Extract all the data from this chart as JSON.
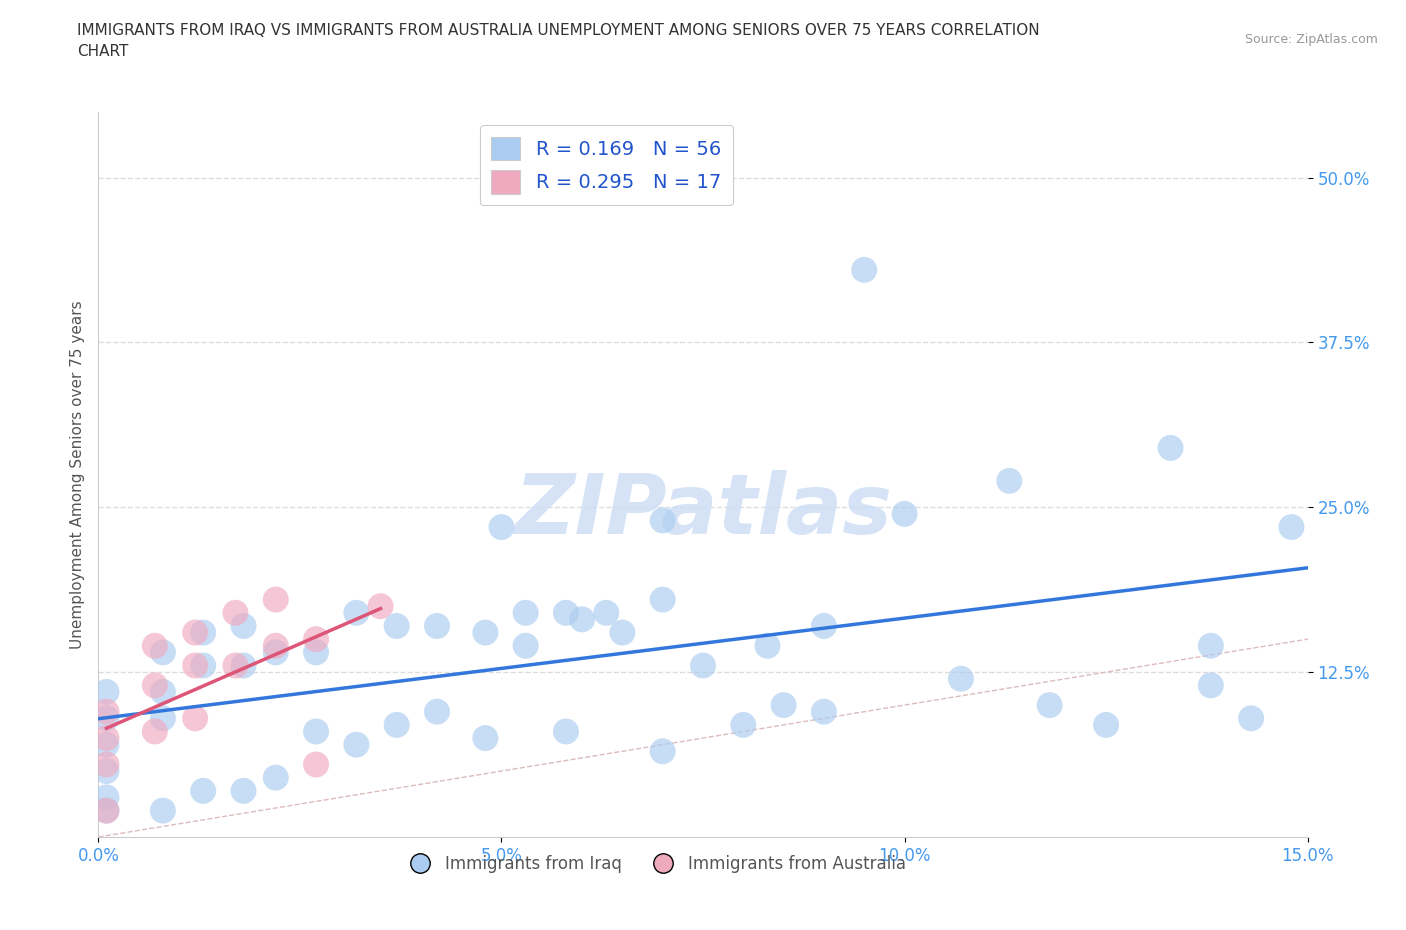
{
  "title": "IMMIGRANTS FROM IRAQ VS IMMIGRANTS FROM AUSTRALIA UNEMPLOYMENT AMONG SENIORS OVER 75 YEARS CORRELATION\nCHART",
  "source": "Source: ZipAtlas.com",
  "ylabel": "Unemployment Among Seniors over 75 years",
  "xlim": [
    0.0,
    0.15
  ],
  "ylim": [
    0.0,
    0.55
  ],
  "xticks": [
    0.0,
    0.05,
    0.1,
    0.15
  ],
  "xticklabels": [
    "0.0%",
    "5.0%",
    "10.0%",
    "15.0%"
  ],
  "yticks": [
    0.125,
    0.25,
    0.375,
    0.5
  ],
  "yticklabels": [
    "12.5%",
    "25.0%",
    "37.5%",
    "50.0%"
  ],
  "iraq_R": 0.169,
  "iraq_N": 56,
  "australia_R": 0.295,
  "australia_N": 17,
  "iraq_color": "#aaccf0",
  "australia_color": "#f0aac0",
  "iraq_line_color": "#3377dd",
  "australia_line_color": "#dd5577",
  "diagonal_color": "#ddbbbb",
  "watermark_color": "#ccddf5",
  "iraq_x": [
    0.001,
    0.001,
    0.001,
    0.001,
    0.001,
    0.001,
    0.008,
    0.008,
    0.008,
    0.008,
    0.013,
    0.013,
    0.013,
    0.018,
    0.018,
    0.018,
    0.022,
    0.022,
    0.027,
    0.027,
    0.032,
    0.032,
    0.037,
    0.037,
    0.042,
    0.042,
    0.048,
    0.048,
    0.053,
    0.053,
    0.058,
    0.058,
    0.063,
    0.07,
    0.07,
    0.075,
    0.083,
    0.09,
    0.09,
    0.095,
    0.1,
    0.107,
    0.113,
    0.118,
    0.125,
    0.133,
    0.138,
    0.138,
    0.143,
    0.148,
    0.05,
    0.06,
    0.065,
    0.07,
    0.08,
    0.085
  ],
  "iraq_y": [
    0.05,
    0.07,
    0.09,
    0.11,
    0.03,
    0.02,
    0.09,
    0.11,
    0.14,
    0.02,
    0.13,
    0.155,
    0.035,
    0.16,
    0.13,
    0.035,
    0.14,
    0.045,
    0.14,
    0.08,
    0.17,
    0.07,
    0.16,
    0.085,
    0.16,
    0.095,
    0.155,
    0.075,
    0.17,
    0.145,
    0.17,
    0.08,
    0.17,
    0.18,
    0.065,
    0.13,
    0.145,
    0.16,
    0.095,
    0.43,
    0.245,
    0.12,
    0.27,
    0.1,
    0.085,
    0.295,
    0.115,
    0.145,
    0.09,
    0.235,
    0.235,
    0.165,
    0.155,
    0.24,
    0.085,
    0.1
  ],
  "australia_x": [
    0.001,
    0.001,
    0.001,
    0.001,
    0.007,
    0.007,
    0.007,
    0.012,
    0.012,
    0.012,
    0.017,
    0.017,
    0.022,
    0.022,
    0.027,
    0.027,
    0.035
  ],
  "australia_y": [
    0.055,
    0.075,
    0.095,
    0.02,
    0.08,
    0.115,
    0.145,
    0.09,
    0.13,
    0.155,
    0.13,
    0.17,
    0.145,
    0.18,
    0.15,
    0.055,
    0.175
  ],
  "background_color": "#ffffff",
  "grid_color": "#dddddd",
  "title_color": "#333333",
  "tick_color": "#4499ee",
  "legend_fontsize": 14,
  "title_fontsize": 11,
  "source_fontsize": 9
}
